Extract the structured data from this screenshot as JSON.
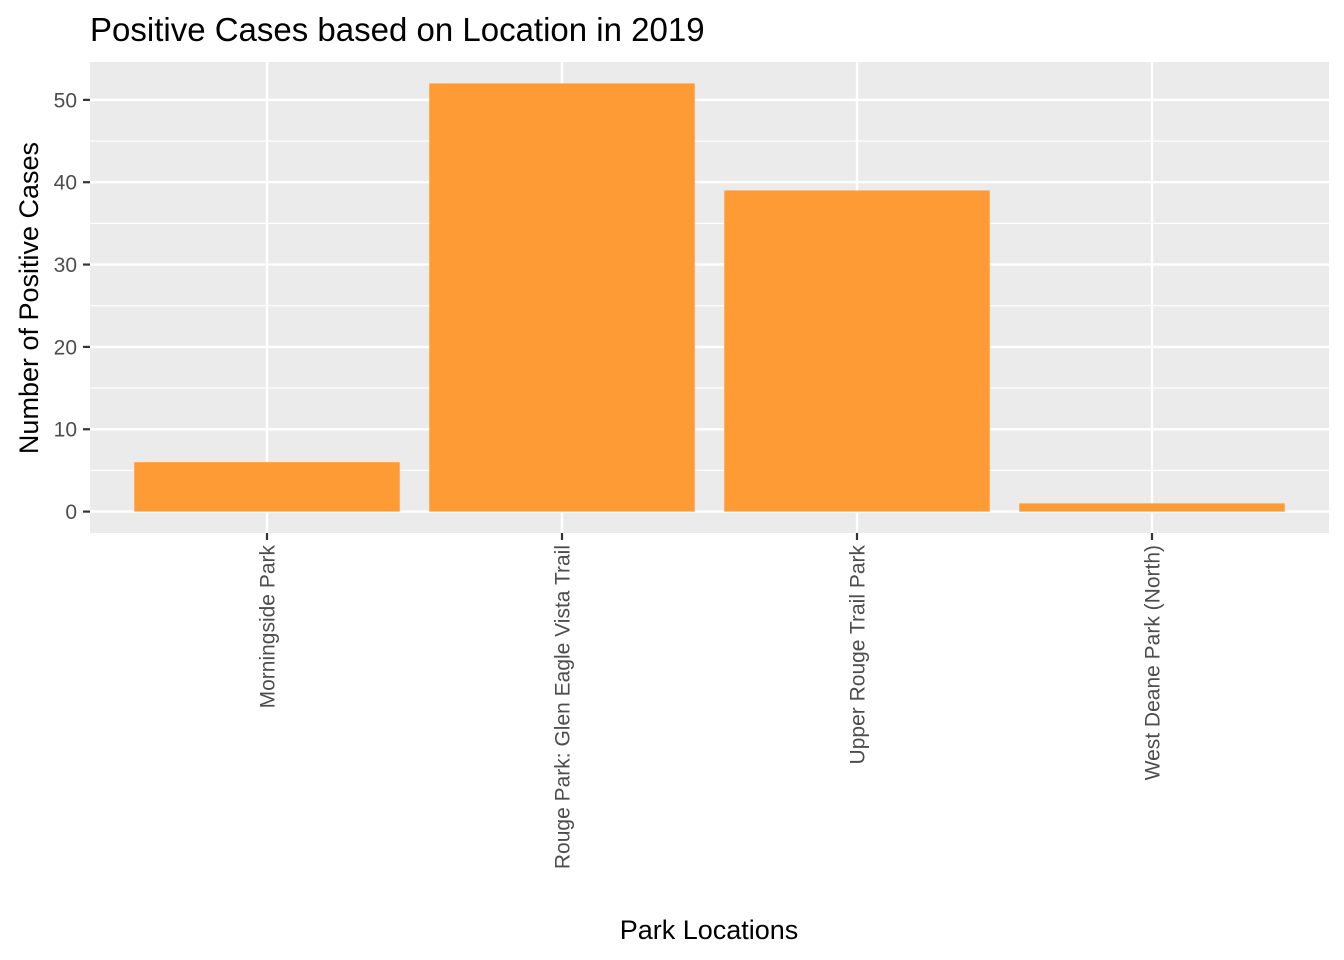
{
  "chart_data": {
    "type": "bar",
    "title": "Positive Cases based on Location in 2019",
    "xlabel": "Park Locations",
    "ylabel": "Number of Positive Cases",
    "categories": [
      "Morningside Park",
      "Rouge Park: Glen Eagle Vista Trail",
      "Upper Rouge Trail Park",
      "West Deane Park (North)"
    ],
    "values": [
      6,
      52,
      39,
      1
    ],
    "ylim": [
      -2.6,
      54.6
    ],
    "yticks": [
      0,
      10,
      20,
      30,
      40,
      50
    ],
    "ytick_labels": [
      "0",
      "10",
      "20",
      "30",
      "40",
      "50"
    ],
    "grid": true,
    "legend": "none",
    "colors": {
      "bar": "#FF9B35",
      "panel_background": "#EBEBEB",
      "grid_major": "#FFFFFF",
      "tick_text": "#4D4D4D",
      "axis_tick": "#333333"
    }
  }
}
